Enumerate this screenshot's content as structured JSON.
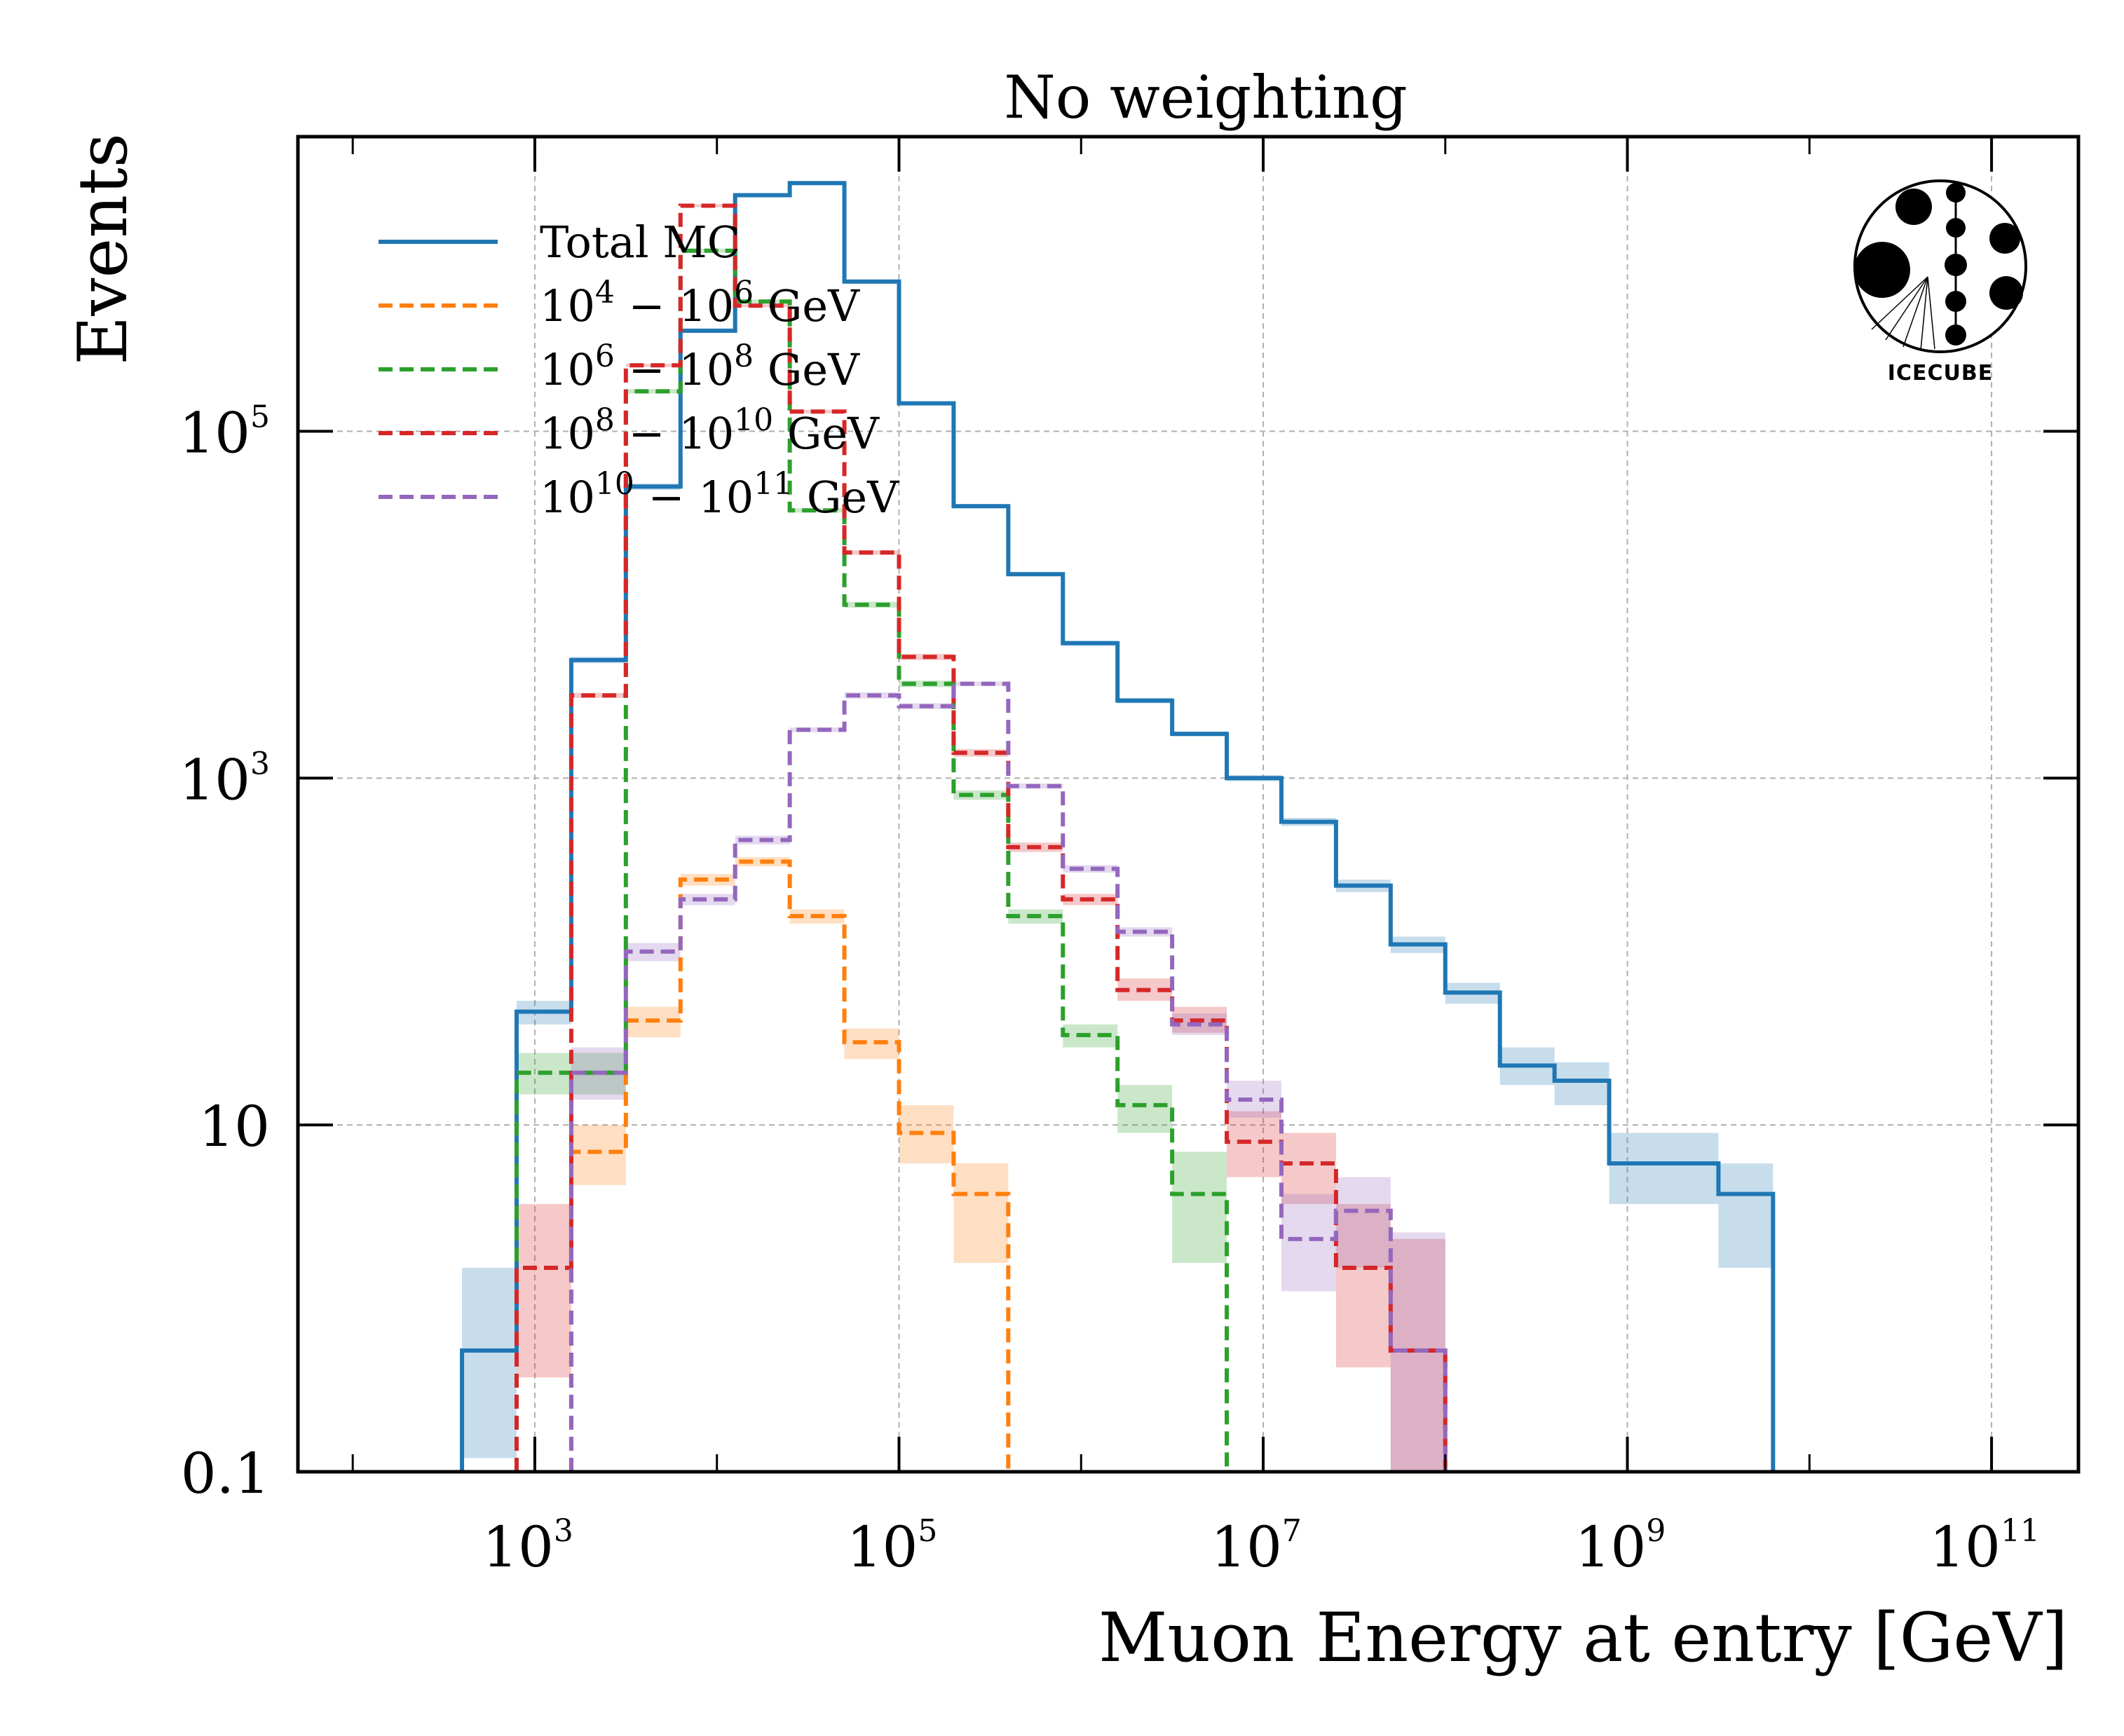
{
  "chart_data": {
    "type": "histogram-step",
    "title": "No weighting",
    "xlabel": "Muon Energy at entry [GeV]",
    "ylabel": "Events",
    "xscale": "log",
    "yscale": "log",
    "xlim": [
      50,
      300000000000
    ],
    "ylim": [
      0.1,
      5000000
    ],
    "grid": true,
    "legend_position": "upper-left",
    "x_ticks": [
      {
        "base": "10",
        "exp": "3",
        "value": 1000
      },
      {
        "base": "10",
        "exp": "5",
        "value": 100000
      },
      {
        "base": "10",
        "exp": "7",
        "value": 10000000
      },
      {
        "base": "10",
        "exp": "9",
        "value": 1000000000
      },
      {
        "base": "10",
        "exp": "11",
        "value": 100000000000
      }
    ],
    "y_ticks": [
      {
        "base": "0.1",
        "exp": "",
        "value": 0.1
      },
      {
        "base": "10",
        "exp": "",
        "value": 10
      },
      {
        "base": "10",
        "exp": "3",
        "value": 1000
      },
      {
        "base": "10",
        "exp": "5",
        "value": 100000
      }
    ],
    "bin_edges_log10": [
      2.6,
      2.9,
      3.2,
      3.5,
      3.8,
      4.1,
      4.4,
      4.7,
      5.0,
      5.3,
      5.6,
      5.9,
      6.2,
      6.5,
      6.8,
      7.1,
      7.4,
      7.7,
      8.0,
      8.3,
      8.6,
      8.9,
      9.2,
      9.5,
      9.8
    ],
    "series": [
      {
        "name": "Total MC",
        "color": "#1f77b4",
        "dashed": false,
        "values": [
          0.5,
          45,
          4800,
          48000,
          380000,
          2300000,
          2700000,
          730000,
          145000,
          37000,
          15000,
          6000,
          2800,
          1800,
          1000,
          560,
          240,
          110,
          58,
          22,
          18,
          6,
          6,
          4
        ],
        "err": [
          [
            0.12,
            1.5
          ],
          [
            38,
            52
          ],
          [
            4600,
            5000
          ],
          [
            46000,
            50000
          ],
          [
            370000,
            390000
          ],
          [
            2250000,
            2350000
          ],
          [
            2650000,
            2750000
          ],
          [
            715000,
            745000
          ],
          [
            142000,
            148000
          ],
          [
            36000,
            38000
          ],
          [
            14600,
            15400
          ],
          [
            5800,
            6200
          ],
          [
            2700,
            2900
          ],
          [
            1740,
            1860
          ],
          [
            960,
            1040
          ],
          [
            530,
            590
          ],
          [
            220,
            260
          ],
          [
            98,
            122
          ],
          [
            50,
            66
          ],
          [
            17,
            28
          ],
          [
            13,
            23
          ],
          [
            3.5,
            9
          ],
          [
            3.5,
            9
          ],
          [
            1.5,
            6
          ]
        ]
      },
      {
        "name": "10^4 − 10^6 GeV",
        "label_parts": [
          "10",
          "4",
          " − 10",
          "6",
          " GeV"
        ],
        "color": "#ff7f0e",
        "dashed": true,
        "values": [
          null,
          null,
          7,
          40,
          260,
          330,
          160,
          30,
          9,
          4
        ],
        "start_bin": 2,
        "err": [
          [
            4.5,
            10
          ],
          [
            32,
            48
          ],
          [
            240,
            280
          ],
          [
            310,
            350
          ],
          [
            145,
            175
          ],
          [
            24,
            36
          ],
          [
            6,
            13
          ],
          [
            1.6,
            6
          ]
        ]
      },
      {
        "name": "10^6 − 10^8 GeV",
        "label_parts": [
          "10",
          "6",
          " − 10",
          "8",
          " GeV"
        ],
        "color": "#2ca02c",
        "dashed": true,
        "values": [
          20,
          20,
          170000,
          1100000,
          560000,
          35000,
          10000,
          3500,
          800,
          160,
          33,
          13,
          4
        ],
        "start_bin": 1,
        "err": [
          [
            15,
            26
          ],
          [
            15,
            26
          ],
          [
            165000,
            175000
          ],
          [
            1070000,
            1130000
          ],
          [
            545000,
            575000
          ],
          [
            34000,
            36000
          ],
          [
            9600,
            10400
          ],
          [
            3350,
            3650
          ],
          [
            750,
            850
          ],
          [
            145,
            175
          ],
          [
            28,
            38
          ],
          [
            9,
            17
          ],
          [
            1.6,
            7
          ]
        ]
      },
      {
        "name": "10^8 − 10^10 GeV",
        "label_parts": [
          "10",
          "8",
          " − 10",
          "10",
          " GeV"
        ],
        "color": "#d62728",
        "dashed": true,
        "values": [
          1.5,
          3000,
          240000,
          2000000,
          530000,
          130000,
          20000,
          5000,
          1400,
          400,
          200,
          60,
          40,
          8,
          6,
          1.5,
          0.5
        ],
        "start_bin": 1,
        "err": [
          [
            0.35,
            3.5
          ],
          [
            2900,
            3100
          ],
          [
            235000,
            245000
          ],
          [
            1960000,
            2040000
          ],
          [
            520000,
            540000
          ],
          [
            127000,
            133000
          ],
          [
            19400,
            20600
          ],
          [
            4800,
            5200
          ],
          [
            1330,
            1470
          ],
          [
            375,
            425
          ],
          [
            185,
            215
          ],
          [
            52,
            70
          ],
          [
            34,
            48
          ],
          [
            5,
            12
          ],
          [
            3.5,
            9
          ],
          [
            0.4,
            3.5
          ],
          [
            0.08,
            2.2
          ]
        ]
      },
      {
        "name": "10^10 − 10^11 GeV",
        "label_parts": [
          "10",
          "10",
          " − 10",
          "11",
          " GeV"
        ],
        "color": "#9467bd",
        "dashed": true,
        "values": [
          20,
          100,
          200,
          440,
          1900,
          3000,
          2600,
          3500,
          900,
          300,
          130,
          38,
          14,
          2.2,
          3.2,
          0.5
        ],
        "start_bin": 2,
        "err": [
          [
            14,
            28
          ],
          [
            88,
            112
          ],
          [
            185,
            215
          ],
          [
            415,
            465
          ],
          [
            1840,
            1960
          ],
          [
            2880,
            3120
          ],
          [
            2500,
            2700
          ],
          [
            3400,
            3600
          ],
          [
            870,
            930
          ],
          [
            285,
            315
          ],
          [
            122,
            138
          ],
          [
            33,
            44
          ],
          [
            11,
            18
          ],
          [
            1.1,
            4
          ],
          [
            1.5,
            5
          ],
          [
            0.08,
            2.4
          ]
        ]
      }
    ],
    "logo": {
      "text": "IceCube",
      "icon": "icecube-logo"
    }
  }
}
